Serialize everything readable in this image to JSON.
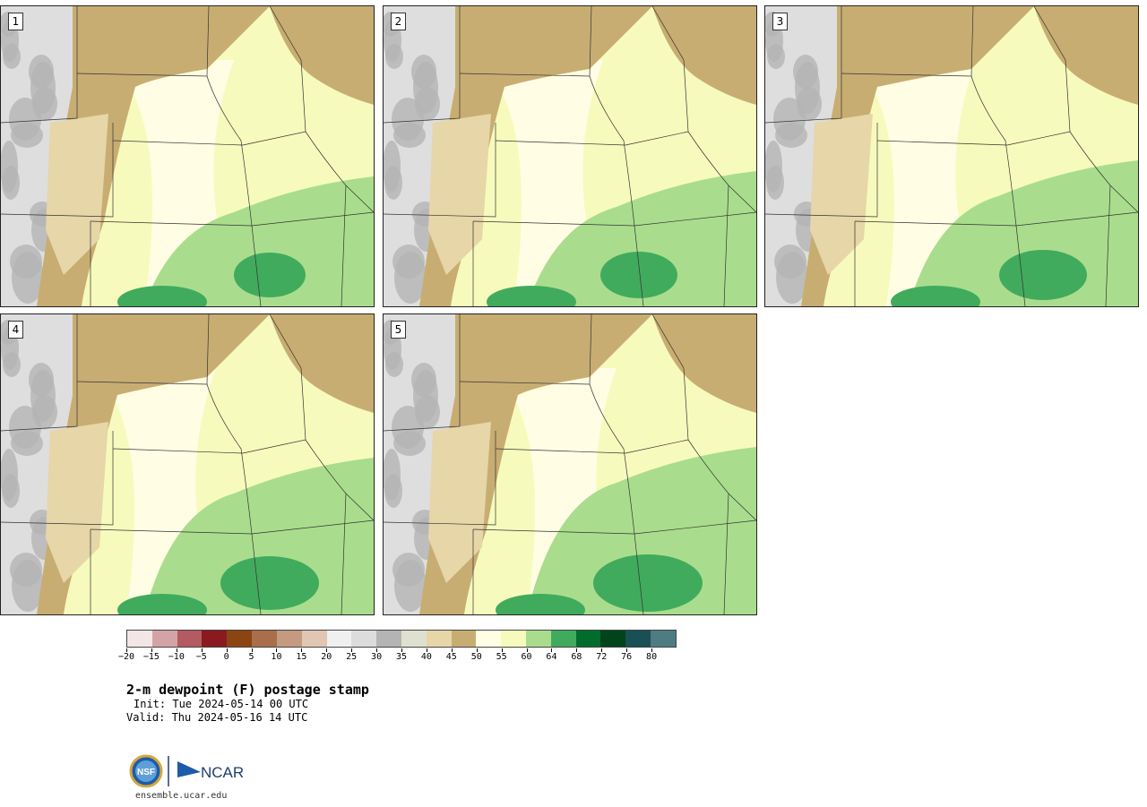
{
  "panels": [
    {
      "label": "1"
    },
    {
      "label": "2"
    },
    {
      "label": "3"
    },
    {
      "label": "4"
    },
    {
      "label": "5"
    }
  ],
  "legend": {
    "colors": [
      "#f3e6e6",
      "#d4a3a8",
      "#b25b62",
      "#8b1a1e",
      "#8b4513",
      "#a86f4a",
      "#c49a80",
      "#e1c6b4",
      "#f0f0f0",
      "#dcdcdc",
      "#b4b4b4",
      "#e0e0d0",
      "#e6d6a8",
      "#c8ad72",
      "#fffde3",
      "#f6fbbd",
      "#a9dd8d",
      "#41ab5d",
      "#006d2c",
      "#00441b",
      "#1a4f55",
      "#4f7c82"
    ],
    "tick_labels": [
      "−20",
      "−15",
      "−10",
      "−5",
      "0",
      "5",
      "10",
      "15",
      "20",
      "25",
      "30",
      "35",
      "40",
      "45",
      "50",
      "55",
      "60",
      "64",
      "68",
      "72",
      "76",
      "80"
    ]
  },
  "title": "2-m dewpoint (F) postage stamp",
  "init": "Init: Tue 2024-05-14 00 UTC",
  "valid": "Valid: Thu 2024-05-16 14 UTC",
  "url": "ensemble.ucar.edu",
  "logos": {
    "nsf": "NSF",
    "ncar": "NCAR"
  },
  "map_colors": {
    "lt_gray": "#dedede",
    "gray": "#b4b4b4",
    "tan": "#c8ad72",
    "lt_tan": "#e6d6a8",
    "cream": "#fffde3",
    "pale_yellow": "#f6fbbd",
    "lt_green": "#a9dd8d",
    "mid_green": "#41ab5d",
    "dk_green": "#006d2c"
  }
}
